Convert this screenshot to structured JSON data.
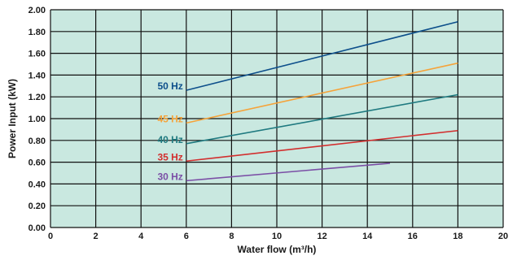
{
  "chart_data": {
    "type": "line",
    "title": "",
    "xlabel": "Water flow  (m³/h)",
    "ylabel": "Power Input (kW)",
    "xlim": [
      0,
      20
    ],
    "ylim": [
      0,
      2.0
    ],
    "x_ticks": [
      "0",
      "2",
      "4",
      "6",
      "8",
      "10",
      "12",
      "14",
      "16",
      "18",
      "20"
    ],
    "y_ticks": [
      "0.00",
      "0.20",
      "0.40",
      "0.60",
      "0.80",
      "1.00",
      "1.20",
      "1.40",
      "1.60",
      "1.80",
      "2.00"
    ],
    "grid": true,
    "background_color": "#c9e8e0",
    "grid_color": "#111111",
    "legend": "inline labels at left end of each line",
    "series": [
      {
        "name": "50 Hz",
        "color": "#0d4f8b",
        "x": [
          6,
          18
        ],
        "y": [
          1.26,
          1.89
        ]
      },
      {
        "name": "45 Hz",
        "color": "#f5a33a",
        "x": [
          6,
          18
        ],
        "y": [
          0.96,
          1.51
        ]
      },
      {
        "name": "40 Hz",
        "color": "#1f7a80",
        "x": [
          6,
          18
        ],
        "y": [
          0.77,
          1.22
        ]
      },
      {
        "name": "35 Hz",
        "color": "#d22e2e",
        "x": [
          6,
          18
        ],
        "y": [
          0.61,
          0.89
        ]
      },
      {
        "name": "30 Hz",
        "color": "#7b4fa6",
        "x": [
          6,
          15
        ],
        "y": [
          0.43,
          0.59
        ]
      }
    ]
  }
}
